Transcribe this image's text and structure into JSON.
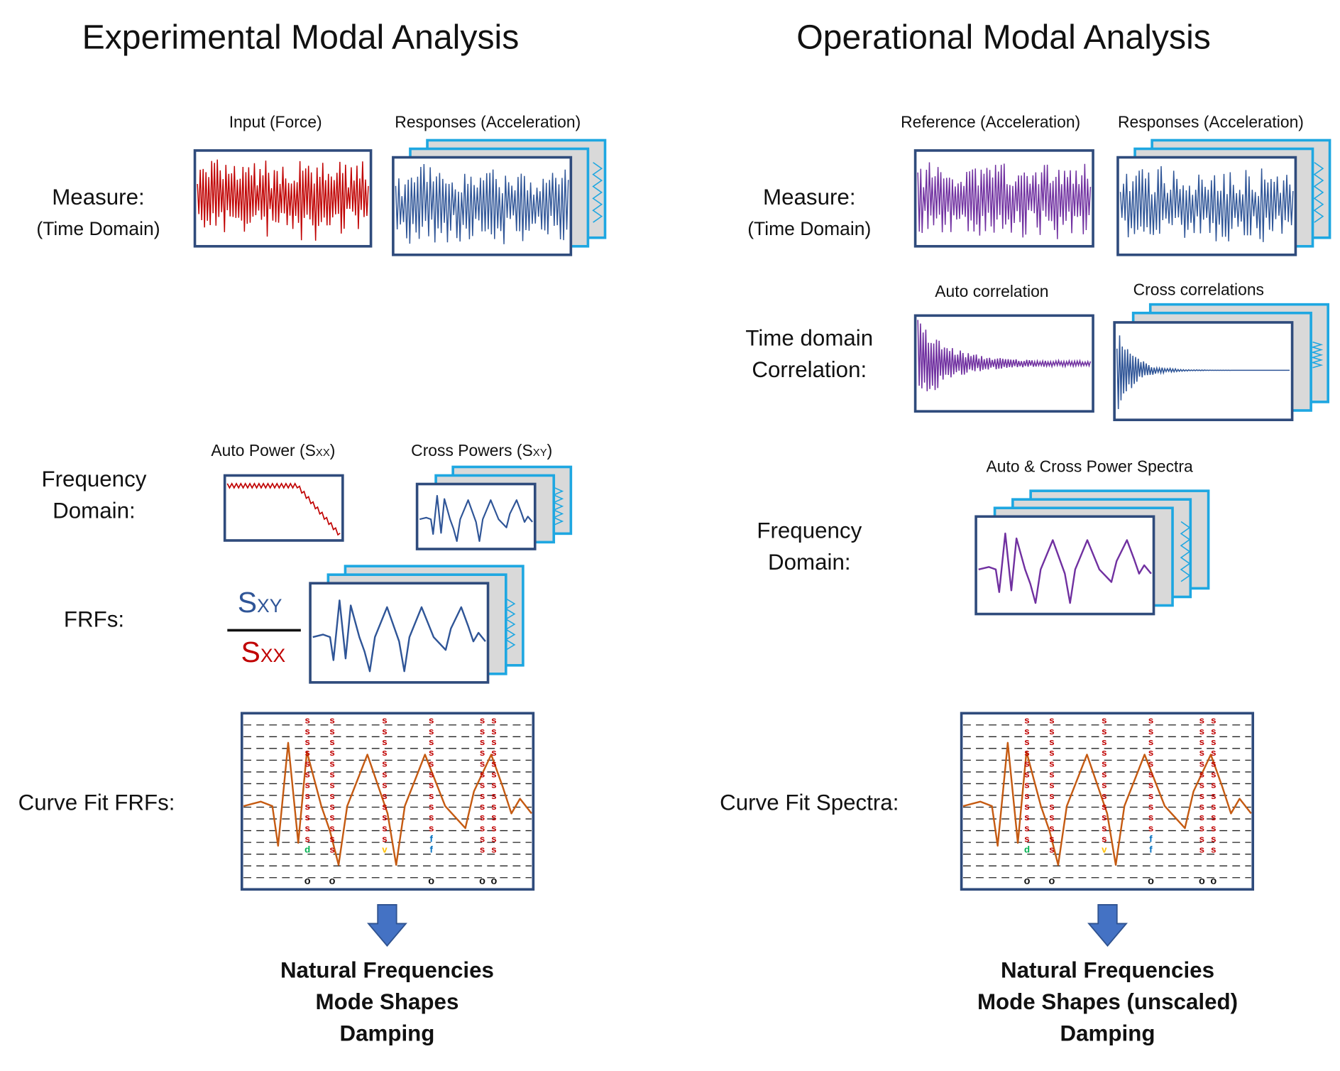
{
  "left": {
    "title": "Experimental Modal Analysis",
    "measure_label_1": "Measure:",
    "measure_label_2": "(Time Domain)",
    "input_caption": "Input (Force)",
    "responses_caption": "Responses (Acceleration)",
    "freq_label_1": "Frequency",
    "freq_label_2": "Domain:",
    "auto_power_caption": "Auto Power (S",
    "auto_power_sub": "XX",
    "auto_power_close": ")",
    "cross_powers_caption": "Cross Powers (S",
    "cross_powers_sub": "XY",
    "cross_powers_close": ")",
    "frf_label": "FRFs:",
    "ratio_num": "S",
    "ratio_num_sub": "XY",
    "ratio_den": "S",
    "ratio_den_sub": "XX",
    "curvefit_label": "Curve Fit FRFs:",
    "results": [
      "Natural Frequencies",
      "Mode Shapes",
      "Damping"
    ]
  },
  "right": {
    "title": "Operational Modal Analysis",
    "measure_label_1": "Measure:",
    "measure_label_2": "(Time Domain)",
    "reference_caption": "Reference (Acceleration)",
    "responses_caption": "Responses (Acceleration)",
    "corr_label_1": "Time domain",
    "corr_label_2": "Correlation:",
    "auto_corr_caption": "Auto correlation",
    "cross_corr_caption": "Cross correlations",
    "spectra_caption": "Auto & Cross Power Spectra",
    "freq_label_1": "Frequency",
    "freq_label_2": "Domain:",
    "curvefit_label": "Curve Fit Spectra:",
    "results": [
      "Natural Frequencies",
      "Mode Shapes (unscaled)",
      "Damping"
    ]
  },
  "stability_markers": {
    "stable": "s",
    "damping": "d",
    "vector": "v",
    "frequency": "f",
    "new": "o"
  },
  "colors": {
    "frame": "#2f4b7c",
    "back_frame": "#1ea7e1",
    "force_signal": "#c00000",
    "response_signal": "#2f5597",
    "reference_signal": "#7030a0",
    "fit_curve": "#c55a11",
    "arrow": "#4472c4",
    "sxy_text": "#2f5597",
    "sxx_text": "#c00000",
    "marker_s": "#c00000",
    "marker_d": "#00b050",
    "marker_v": "#ffc000",
    "marker_f": "#0070c0"
  }
}
